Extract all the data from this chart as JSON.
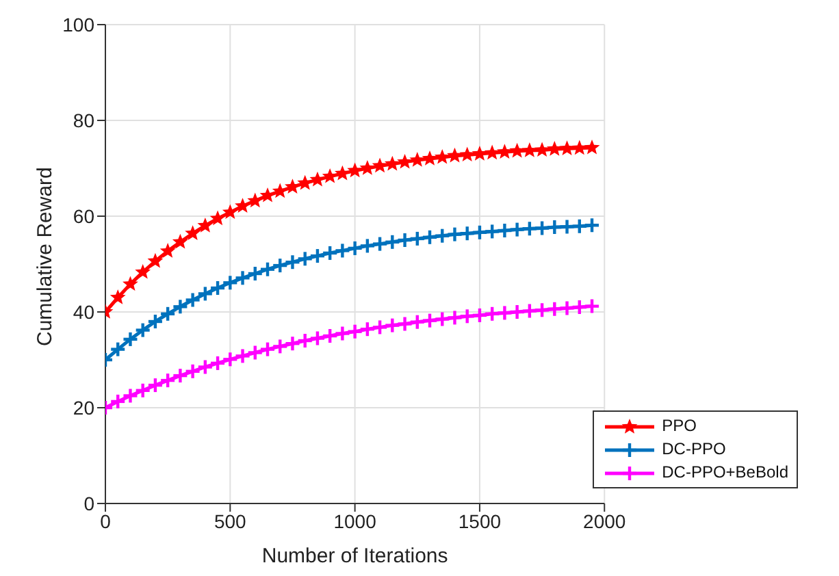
{
  "chart_data": {
    "type": "line",
    "xlabel": "Number of Iterations",
    "ylabel": "Cumulative Reward",
    "x": [
      0,
      50,
      100,
      150,
      200,
      250,
      300,
      350,
      400,
      450,
      500,
      550,
      600,
      650,
      700,
      750,
      800,
      850,
      900,
      950,
      1000,
      1050,
      1100,
      1150,
      1200,
      1250,
      1300,
      1350,
      1400,
      1450,
      1500,
      1550,
      1600,
      1650,
      1700,
      1750,
      1800,
      1850,
      1900,
      1950
    ],
    "series": [
      {
        "name": "PPO",
        "color": "#ff0000",
        "marker": "star",
        "values": [
          40,
          43,
          45.8,
          48.3,
          50.6,
          52.7,
          54.6,
          56.4,
          58,
          59.5,
          60.8,
          62.1,
          63.2,
          64.3,
          65.2,
          66.1,
          66.9,
          67.6,
          68.3,
          68.9,
          69.5,
          70,
          70.5,
          70.9,
          71.3,
          71.7,
          72,
          72.3,
          72.6,
          72.8,
          73,
          73.2,
          73.4,
          73.6,
          73.7,
          73.8,
          74,
          74.1,
          74.2,
          74.3
        ]
      },
      {
        "name": "DC-PPO",
        "color": "#0072bd",
        "marker": "cross",
        "values": [
          30,
          32.2,
          34.3,
          36.2,
          38,
          39.6,
          41.1,
          42.5,
          43.8,
          45,
          46.1,
          47.1,
          48,
          48.9,
          49.7,
          50.4,
          51.1,
          51.7,
          52.3,
          52.8,
          53.3,
          53.8,
          54.2,
          54.6,
          55,
          55.3,
          55.6,
          55.9,
          56.2,
          56.4,
          56.6,
          56.8,
          57,
          57.2,
          57.4,
          57.5,
          57.7,
          57.8,
          57.9,
          58.1
        ]
      },
      {
        "name": "DC-PPO+BeBold",
        "color": "#ff00ff",
        "marker": "cross",
        "values": [
          20,
          21.3,
          22.5,
          23.6,
          24.7,
          25.7,
          26.7,
          27.6,
          28.5,
          29.3,
          30.1,
          30.8,
          31.5,
          32.2,
          32.8,
          33.4,
          34,
          34.5,
          35,
          35.5,
          35.9,
          36.4,
          36.8,
          37.2,
          37.5,
          37.9,
          38.2,
          38.5,
          38.8,
          39.1,
          39.3,
          39.6,
          39.8,
          40,
          40.2,
          40.4,
          40.6,
          40.8,
          41,
          41.2
        ]
      }
    ],
    "xlim": [
      0,
      2000
    ],
    "xticks": [
      0,
      500,
      1000,
      1500,
      2000
    ],
    "ylim": [
      0,
      100
    ],
    "yticks": [
      0,
      20,
      40,
      60,
      80,
      100
    ],
    "grid": true,
    "legend": "bottom right",
    "line_style": "solid"
  }
}
